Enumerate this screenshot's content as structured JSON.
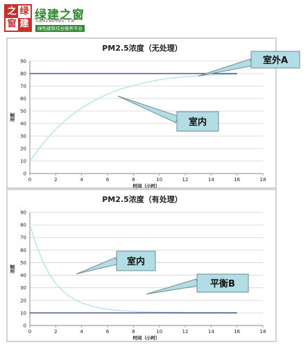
{
  "logo": {
    "grid": [
      "之",
      "绿",
      "窗",
      "建"
    ],
    "title": "绿建之窗",
    "url": "GBWINDOWS.CN",
    "slogan": "绿色建筑综合服务平台"
  },
  "colors": {
    "indoor_curve": "#b9e6ea",
    "reference_line": "#2b3680",
    "callout_fill": "#b3dde5",
    "callout_stroke": "#6f8a96",
    "gridline": "#d2d2d2",
    "frame": "#a7a7a7",
    "logo_red": "#c8302a",
    "logo_green": "#2f8a2f"
  },
  "chart_data": [
    {
      "type": "line",
      "title": "PM2.5浓度（无处理）",
      "xlabel": "时间（小时）",
      "ylabel": "浓度",
      "xlim": [
        0,
        18
      ],
      "ylim": [
        0,
        90
      ],
      "xticks": [
        0,
        2,
        4,
        6,
        8,
        10,
        12,
        14,
        16,
        18
      ],
      "yticks": [
        0,
        10,
        20,
        30,
        40,
        50,
        60,
        70,
        80,
        90
      ],
      "grid": true,
      "series": [
        {
          "x": [
            0,
            1,
            2,
            3,
            4,
            5,
            6,
            7,
            8,
            9,
            10,
            11,
            12,
            13,
            14,
            15,
            16
          ],
          "y": [
            10,
            24,
            35.5,
            45,
            52.5,
            58.5,
            63.5,
            67.5,
            70.5,
            73,
            75,
            76.5,
            77.5,
            78.2,
            78.8,
            79.2,
            79.5
          ]
        },
        {
          "x": [
            0,
            16
          ],
          "y": [
            80,
            80
          ]
        }
      ],
      "annotations": [
        {
          "text": "室外A",
          "points_to": [
            13,
            78
          ]
        },
        {
          "text": "室内",
          "points_to": [
            6.8,
            62
          ]
        }
      ]
    },
    {
      "type": "line",
      "title": "PM2.5浓度（有处理）",
      "xlabel": "时间（小时）",
      "ylabel": "浓度",
      "xlim": [
        0,
        18
      ],
      "ylim": [
        0,
        90
      ],
      "xticks": [
        0,
        2,
        4,
        6,
        8,
        10,
        12,
        14,
        16,
        18
      ],
      "yticks": [
        0,
        10,
        20,
        30,
        40,
        50,
        60,
        70,
        80,
        90
      ],
      "grid": true,
      "series": [
        {
          "x": [
            0,
            0.5,
            1,
            1.5,
            2,
            2.5,
            3,
            3.5,
            4,
            5,
            6,
            7,
            8,
            9,
            10,
            12,
            14,
            16
          ],
          "y": [
            80,
            64,
            51,
            41,
            33.5,
            28,
            23.5,
            20.5,
            18,
            14.8,
            12.8,
            11.8,
            11.2,
            10.8,
            10.6,
            10.4,
            10.3,
            10.2
          ]
        },
        {
          "x": [
            0,
            16
          ],
          "y": [
            10,
            10
          ]
        }
      ],
      "annotations": [
        {
          "text": "室内",
          "points_to": [
            3.6,
            41
          ]
        },
        {
          "text": "平衡B",
          "points_to": [
            9,
            25
          ]
        }
      ]
    }
  ]
}
